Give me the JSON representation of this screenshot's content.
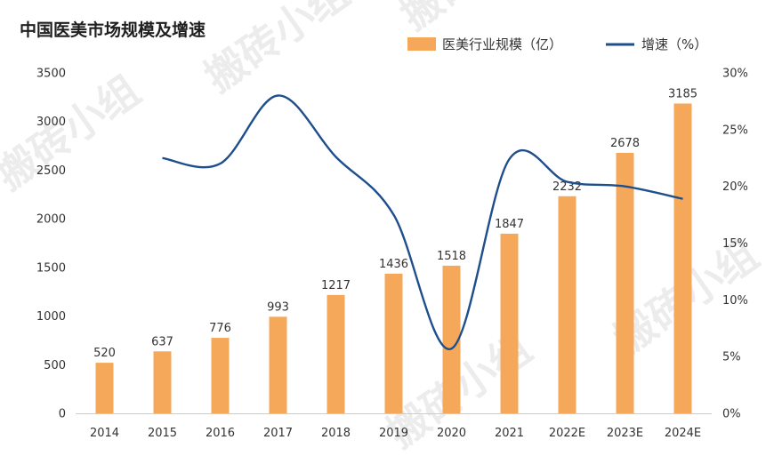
{
  "watermark": "搬砖小组",
  "colors": {
    "bar": "#F5A85A",
    "line": "#1F4E8C",
    "axis": "#cccccc"
  },
  "chart_data": {
    "type": "bar+line",
    "title": "中国医美市场规模及增速",
    "categories": [
      "2014",
      "2015",
      "2016",
      "2017",
      "2018",
      "2019",
      "2020",
      "2021",
      "2022E",
      "2023E",
      "2024E"
    ],
    "series": [
      {
        "name": "医美行业规模（亿）",
        "type": "bar",
        "axis": "left",
        "values": [
          520,
          637,
          776,
          993,
          1217,
          1436,
          1518,
          1847,
          2232,
          2678,
          3185
        ]
      },
      {
        "name": "增速（%）",
        "type": "line",
        "axis": "right",
        "values": [
          null,
          22.5,
          22.0,
          28.0,
          22.6,
          17.5,
          5.7,
          22.4,
          20.4,
          20.0,
          18.9
        ]
      }
    ],
    "y_left": {
      "min": 0,
      "max": 3500,
      "ticks": [
        "0",
        "500",
        "1000",
        "1500",
        "2000",
        "2500",
        "3000",
        "3500"
      ]
    },
    "y_right": {
      "min": 0,
      "max": 30,
      "ticks": [
        "0%",
        "5%",
        "10%",
        "15%",
        "20%",
        "25%",
        "30%"
      ]
    },
    "legend_position": "top-right",
    "grid": false
  }
}
